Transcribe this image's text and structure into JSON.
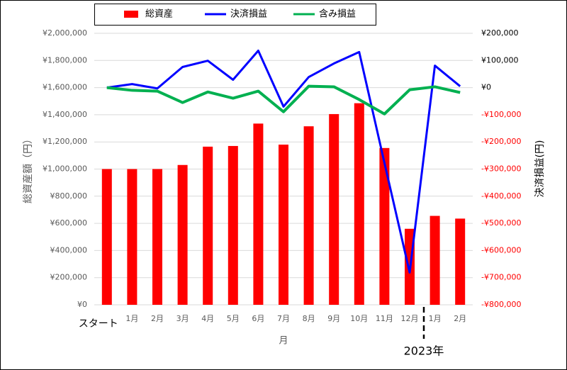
{
  "chart_data": {
    "type": "bar-line",
    "legend_position": "top",
    "categories": [
      "スタート",
      "1月",
      "2月",
      "3月",
      "4月",
      "5月",
      "6月",
      "7月",
      "8月",
      "9月",
      "10月",
      "11月",
      "12月",
      "1月",
      "2月"
    ],
    "series": [
      {
        "name": "総資産",
        "type": "bar",
        "color": "#ff0000",
        "axis": "y",
        "values": [
          1000000,
          1000000,
          1000000,
          1030000,
          1165000,
          1170000,
          1335000,
          1180000,
          1315000,
          1405000,
          1485000,
          1155000,
          560000,
          655000,
          635000
        ]
      },
      {
        "name": "決済損益",
        "type": "line",
        "color": "#0000ff",
        "axis": "y2",
        "values": [
          0,
          13000,
          -3000,
          76000,
          99000,
          29000,
          136000,
          -70000,
          39000,
          89000,
          131000,
          -277000,
          -681000,
          81000,
          5000
        ]
      },
      {
        "name": "含み損益",
        "type": "line",
        "color": "#00b050",
        "axis": "y2",
        "values": [
          0,
          -10000,
          -13000,
          -55000,
          -16000,
          -39000,
          -13000,
          -89000,
          5000,
          3000,
          -44000,
          -97000,
          -8000,
          3000,
          -18000
        ]
      }
    ],
    "y_label": "総資産額（円）",
    "y2_label": "決済損益(円)",
    "x_label": "月",
    "annotation": "2023年",
    "grid": true,
    "negative_tick_color": "#ff0000",
    "ylim": [
      0,
      2000000
    ],
    "yticks": [
      {
        "value": 0,
        "label": "¥0"
      },
      {
        "value": 200000,
        "label": "¥200,000"
      },
      {
        "value": 400000,
        "label": "¥400,000"
      },
      {
        "value": 600000,
        "label": "¥600,000"
      },
      {
        "value": 800000,
        "label": "¥800,000"
      },
      {
        "value": 1000000,
        "label": "¥1,000,000"
      },
      {
        "value": 1200000,
        "label": "¥1,200,000"
      },
      {
        "value": 1400000,
        "label": "¥1,400,000"
      },
      {
        "value": 1600000,
        "label": "¥1,600,000"
      },
      {
        "value": 1800000,
        "label": "¥1,800,000"
      },
      {
        "value": 2000000,
        "label": "¥2,000,000"
      }
    ],
    "y2lim": [
      -800000,
      200000
    ],
    "y2ticks": [
      {
        "value": -800000,
        "label": "-¥800,000"
      },
      {
        "value": -700000,
        "label": "-¥700,000"
      },
      {
        "value": -600000,
        "label": "-¥600,000"
      },
      {
        "value": -500000,
        "label": "-¥500,000"
      },
      {
        "value": -400000,
        "label": "-¥400,000"
      },
      {
        "value": -300000,
        "label": "-¥300,000"
      },
      {
        "value": -200000,
        "label": "-¥200,000"
      },
      {
        "value": -100000,
        "label": "-¥100,000"
      },
      {
        "value": 0,
        "label": "¥0"
      },
      {
        "value": 100000,
        "label": "¥100,000"
      },
      {
        "value": 200000,
        "label": "¥200,000"
      }
    ]
  }
}
